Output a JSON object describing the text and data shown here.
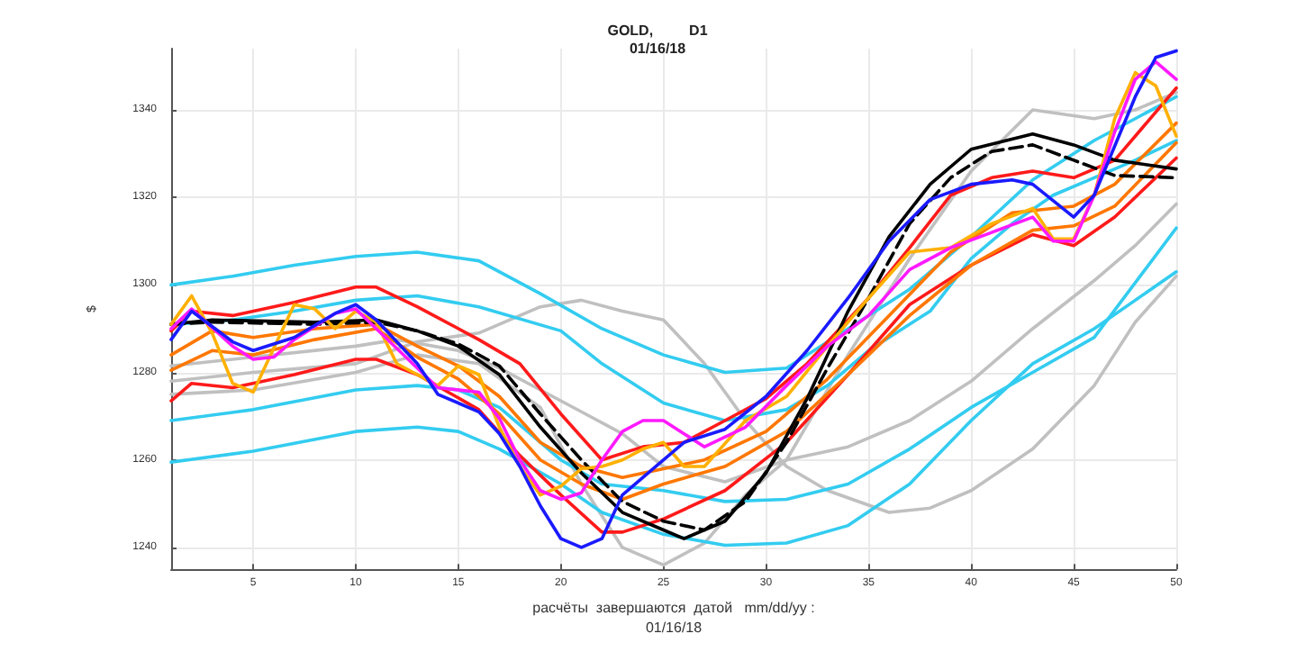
{
  "chart_data": {
    "type": "line",
    "title": "GOLD,         D1",
    "subtitle": "01/16/18",
    "xlabel": "расчёты  завершаются  датой   mm/dd/yy :\n01/16/18",
    "ylabel": "$",
    "xlim": [
      1,
      50
    ],
    "xticks": [
      5,
      10,
      15,
      20,
      25,
      30,
      35,
      40,
      45,
      50
    ],
    "ylim": [
      1235,
      1354
    ],
    "yticks": [
      1240,
      1260,
      1280,
      1300,
      1320,
      1340
    ],
    "grid": true,
    "marker": "none",
    "line_style": "solid",
    "series": [
      {
        "color": "#c0c0c0",
        "x": [
          1,
          5,
          10,
          13,
          16,
          19,
          21,
          23,
          25,
          27,
          29,
          31,
          33,
          36,
          38,
          40,
          43,
          46,
          48,
          50
        ],
        "values": [
          1278,
          1280,
          1282,
          1287,
          1289,
          1295,
          1296.5,
          1294,
          1292,
          1282,
          1269,
          1258.5,
          1253,
          1248,
          1249,
          1253,
          1262.5,
          1277,
          1291.5,
          1302
        ]
      },
      {
        "color": "#c0c0c0",
        "x": [
          1,
          5,
          10,
          13,
          16,
          19,
          21,
          23,
          25,
          27,
          29,
          31,
          34,
          37,
          40,
          43,
          46,
          48,
          50
        ],
        "values": [
          1275,
          1276,
          1280,
          1284,
          1282,
          1272,
          1254.5,
          1240,
          1236,
          1241,
          1252,
          1260,
          1284,
          1306,
          1326,
          1340,
          1338,
          1340,
          1344
        ]
      },
      {
        "color": "#c0c0c0",
        "x": [
          1,
          5,
          10,
          12,
          15,
          17,
          19,
          21,
          23,
          25,
          28,
          31,
          34,
          37,
          40,
          43,
          46,
          48,
          50
        ],
        "values": [
          1281.5,
          1283.5,
          1286,
          1287.5,
          1285,
          1281,
          1276,
          1271,
          1266,
          1258.5,
          1255,
          1260,
          1263,
          1269,
          1278,
          1290,
          1301,
          1309,
          1318.5
        ]
      },
      {
        "color": "#33ccf0",
        "x": [
          1,
          4,
          7,
          10,
          13,
          16,
          19,
          22,
          25,
          28,
          31,
          34,
          37,
          40,
          43,
          46,
          48,
          50
        ],
        "values": [
          1300,
          1302,
          1304.5,
          1306.5,
          1307.5,
          1305.5,
          1298,
          1290,
          1284,
          1280,
          1281,
          1290,
          1299,
          1311,
          1324,
          1333,
          1338,
          1343
        ]
      },
      {
        "color": "#33ccf0",
        "x": [
          1,
          4,
          7,
          10,
          13,
          16,
          20,
          22,
          25,
          28,
          31,
          33,
          35,
          38,
          40,
          42,
          44,
          46,
          48,
          50
        ],
        "values": [
          1291,
          1292,
          1294,
          1296.5,
          1297.5,
          1295,
          1289.5,
          1282,
          1273,
          1269,
          1271.5,
          1277,
          1285,
          1294,
          1306,
          1314,
          1320.5,
          1324.5,
          1328.5,
          1333
        ]
      },
      {
        "color": "#33ccf0",
        "x": [
          1,
          5,
          10,
          13,
          15,
          17,
          20,
          22,
          25,
          28,
          31,
          34,
          37,
          40,
          43,
          46,
          50
        ],
        "values": [
          1269,
          1271.5,
          1276,
          1277,
          1276,
          1272,
          1260,
          1254.5,
          1253,
          1250.5,
          1251,
          1254.5,
          1262.5,
          1272,
          1280,
          1288,
          1313
        ]
      },
      {
        "color": "#33ccf0",
        "x": [
          1,
          5,
          10,
          13,
          15,
          17,
          20,
          22,
          25,
          28,
          31,
          34,
          37,
          40,
          43,
          46,
          50
        ],
        "values": [
          1259.5,
          1262,
          1266.5,
          1267.5,
          1266.5,
          1262.5,
          1254.5,
          1248,
          1243,
          1240.5,
          1241,
          1245,
          1254.5,
          1269,
          1282,
          1290,
          1303
        ]
      },
      {
        "color": "#ff1a1a",
        "x": [
          1,
          2,
          4,
          7,
          10,
          11,
          13,
          16,
          18,
          20,
          22,
          24,
          26,
          28,
          30,
          32,
          35,
          37,
          39,
          41,
          43,
          45,
          47,
          50
        ],
        "values": [
          1289.5,
          1294,
          1293,
          1296,
          1299.5,
          1299.5,
          1295,
          1287.5,
          1282,
          1270.5,
          1260,
          1263,
          1264,
          1269,
          1274,
          1282,
          1297,
          1308.5,
          1320.5,
          1324.5,
          1326,
          1324.5,
          1328.5,
          1345
        ]
      },
      {
        "color": "#ff1a1a",
        "x": [
          1,
          2,
          4,
          7,
          10,
          11,
          13,
          16,
          18,
          20,
          22,
          23,
          25,
          28,
          31,
          34,
          37,
          40,
          43,
          45,
          47,
          50
        ],
        "values": [
          1273.5,
          1277.5,
          1276.5,
          1279.5,
          1283,
          1283,
          1279.5,
          1271.5,
          1261,
          1252,
          1243.5,
          1243.5,
          1246.5,
          1253,
          1264,
          1279.5,
          1295.5,
          1304.5,
          1311.5,
          1309,
          1315.5,
          1329
        ]
      },
      {
        "color": "#ff7700",
        "x": [
          1,
          3,
          5,
          8,
          11,
          13,
          15,
          17,
          19,
          21,
          23,
          25,
          27,
          30,
          33,
          36,
          39,
          42,
          45,
          47,
          50
        ],
        "values": [
          1284,
          1289.5,
          1288,
          1290,
          1291,
          1286,
          1281.5,
          1274.5,
          1264,
          1258.5,
          1256,
          1258,
          1260,
          1266.5,
          1278.5,
          1293,
          1307.5,
          1316.5,
          1318,
          1323,
          1337
        ]
      },
      {
        "color": "#ff7700",
        "x": [
          1,
          3,
          5,
          8,
          11,
          13,
          15,
          17,
          19,
          21,
          23,
          25,
          28,
          31,
          34,
          37,
          40,
          43,
          45,
          47,
          50
        ],
        "values": [
          1280.5,
          1285,
          1284,
          1287.5,
          1290,
          1283.5,
          1278.5,
          1270.5,
          1260,
          1254.5,
          1251,
          1254.5,
          1258.5,
          1266.5,
          1279.5,
          1293,
          1304.5,
          1312.5,
          1313.5,
          1318,
          1332.5
        ]
      },
      {
        "color": "#000000",
        "x": [
          1,
          3,
          8,
          11,
          13,
          15,
          17,
          19,
          21,
          23,
          25,
          26,
          28,
          30,
          32,
          34,
          36,
          38,
          40,
          43,
          45,
          47,
          50
        ],
        "values": [
          1291,
          1292,
          1291.5,
          1292,
          1289.5,
          1286,
          1279.5,
          1267.5,
          1257,
          1248,
          1244,
          1242,
          1246,
          1257,
          1274,
          1294,
          1311,
          1323,
          1331,
          1334.5,
          1332,
          1328.5,
          1326.5
        ]
      },
      {
        "color": "#000000",
        "line_style": "dashed",
        "x": [
          1,
          3,
          8,
          11,
          13,
          15,
          17,
          19,
          21,
          23,
          25,
          27,
          29,
          31,
          33,
          35,
          37,
          39,
          41,
          43,
          45,
          47,
          50
        ],
        "values": [
          1291,
          1291.5,
          1291,
          1291.5,
          1289.5,
          1286.5,
          1281.5,
          1270.5,
          1260,
          1250.5,
          1246,
          1244,
          1250.5,
          1264,
          1281,
          1297,
          1314,
          1324.5,
          1330.5,
          1332,
          1328.5,
          1325,
          1324.5
        ]
      },
      {
        "color": "#ffb000",
        "x": [
          1,
          2,
          3,
          4,
          5,
          7,
          8,
          9,
          10,
          11,
          12,
          13,
          14,
          15,
          16,
          17,
          18,
          19,
          20,
          21,
          22,
          23,
          24,
          25,
          26,
          27,
          29,
          31,
          33,
          35,
          37,
          39,
          41,
          43,
          44,
          45,
          46,
          47,
          48,
          49,
          50
        ],
        "values": [
          1291,
          1297.5,
          1289,
          1277.5,
          1275.5,
          1295.5,
          1294.5,
          1290,
          1294,
          1291.5,
          1282,
          1279.5,
          1277,
          1281.5,
          1279.5,
          1267.5,
          1258.5,
          1252,
          1254,
          1258,
          1258.5,
          1260,
          1262.5,
          1264,
          1258.5,
          1258.5,
          1269,
          1274.5,
          1286,
          1297,
          1307.5,
          1308.5,
          1314,
          1317.5,
          1310.5,
          1310.5,
          1320.5,
          1338,
          1348.5,
          1345.5,
          1334
        ]
      },
      {
        "color": "#ff1aff",
        "x": [
          1,
          2,
          4,
          5,
          6,
          7,
          9,
          10,
          11,
          13,
          14,
          16,
          17,
          18,
          19,
          20,
          21,
          22,
          23,
          24,
          25,
          27,
          29,
          31,
          33,
          35,
          37,
          39,
          41,
          43,
          44,
          45,
          46,
          47,
          48,
          49,
          50
        ],
        "values": [
          1290,
          1294.5,
          1286,
          1283,
          1283.5,
          1287.5,
          1293.5,
          1294.5,
          1290,
          1281,
          1276.5,
          1275.5,
          1269.5,
          1260,
          1253,
          1251,
          1252.5,
          1260,
          1266.5,
          1269,
          1269,
          1263,
          1267.5,
          1277,
          1286,
          1293,
          1303.5,
          1308.5,
          1312,
          1315.5,
          1310,
          1310,
          1320.5,
          1335,
          1347,
          1351,
          1347
        ]
      },
      {
        "color": "#1a1aff",
        "x": [
          1,
          2,
          4,
          5,
          7,
          9,
          10,
          11,
          13,
          14,
          16,
          17,
          18,
          19,
          20,
          21,
          22,
          23,
          24,
          26,
          28,
          30,
          32,
          34,
          36,
          38,
          40,
          42,
          43,
          45,
          46,
          48,
          49,
          50
        ],
        "values": [
          1287.5,
          1294,
          1287,
          1285,
          1288,
          1293.5,
          1295.5,
          1292,
          1282,
          1275,
          1271,
          1266,
          1258.5,
          1249.5,
          1242,
          1240,
          1242,
          1252,
          1256,
          1264,
          1267,
          1274.5,
          1285,
          1297,
          1310,
          1319.5,
          1323,
          1324,
          1323,
          1315.5,
          1320.5,
          1343,
          1352,
          1353.5
        ]
      }
    ]
  }
}
